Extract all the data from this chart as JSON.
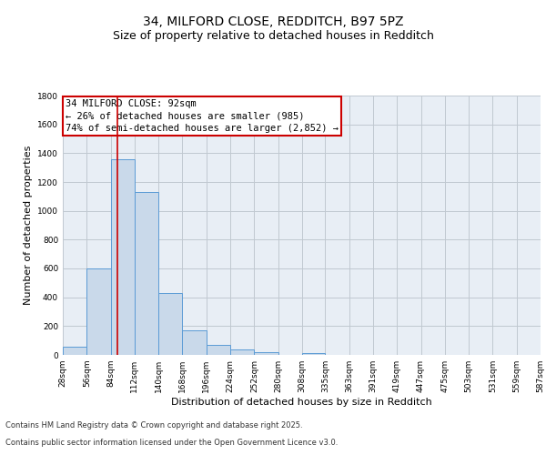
{
  "title1": "34, MILFORD CLOSE, REDDITCH, B97 5PZ",
  "title2": "Size of property relative to detached houses in Redditch",
  "xlabel": "Distribution of detached houses by size in Redditch",
  "ylabel": "Number of detached properties",
  "bin_edges": [
    28,
    56,
    84,
    112,
    140,
    168,
    196,
    224,
    252,
    280,
    308,
    335,
    363,
    391,
    419,
    447,
    475,
    503,
    531,
    559,
    587
  ],
  "bar_heights": [
    60,
    600,
    1360,
    1130,
    430,
    170,
    70,
    35,
    20,
    0,
    15,
    0,
    0,
    0,
    0,
    0,
    0,
    0,
    0,
    0
  ],
  "bar_color": "#c9d9ea",
  "bar_edgecolor": "#5b9bd5",
  "grid_color": "#c0c8d0",
  "bg_color": "#e8eef5",
  "red_line_x": 92,
  "red_line_color": "#cc0000",
  "ylim": [
    0,
    1800
  ],
  "yticks": [
    0,
    200,
    400,
    600,
    800,
    1000,
    1200,
    1400,
    1600,
    1800
  ],
  "annotation_title": "34 MILFORD CLOSE: 92sqm",
  "annotation_line1": "← 26% of detached houses are smaller (985)",
  "annotation_line2": "74% of semi-detached houses are larger (2,852) →",
  "annotation_box_color": "#ffffff",
  "annotation_box_edgecolor": "#cc0000",
  "footnote1": "Contains HM Land Registry data © Crown copyright and database right 2025.",
  "footnote2": "Contains public sector information licensed under the Open Government Licence v3.0.",
  "title_fontsize": 10,
  "subtitle_fontsize": 9,
  "tick_label_fontsize": 6.5,
  "axis_label_fontsize": 8,
  "annotation_fontsize": 7.5,
  "footnote_fontsize": 6
}
